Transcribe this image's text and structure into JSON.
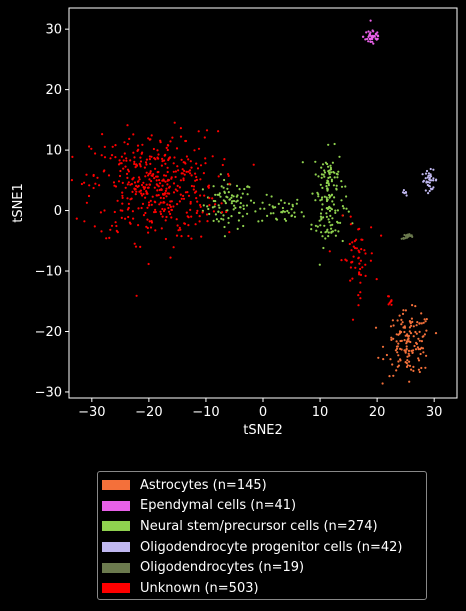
{
  "chart_data": {
    "type": "scatter",
    "title": "",
    "xlabel": "tSNE2",
    "ylabel": "tSNE1",
    "xlim": [
      -34,
      34
    ],
    "ylim": [
      -31,
      33.5
    ],
    "xticks": [
      -30,
      -20,
      -10,
      0,
      10,
      20,
      30
    ],
    "yticks": [
      -30,
      -20,
      -10,
      0,
      10,
      20,
      30
    ],
    "grid": false,
    "legend_position": "below",
    "series": [
      {
        "name": "Astrocytes (n=145)",
        "color": "#f4703a",
        "n": 145,
        "clusters": [
          {
            "cx": 25.5,
            "cy": -22,
            "sx": 2.0,
            "sy": 2.6,
            "n": 145
          }
        ]
      },
      {
        "name": "Ependymal cells (n=41)",
        "color": "#e860e8",
        "n": 41,
        "clusters": [
          {
            "cx": 19.2,
            "cy": 28.8,
            "sx": 0.8,
            "sy": 0.8,
            "n": 41
          }
        ]
      },
      {
        "name": "Neural stem/precursor cells (n=274)",
        "color": "#8fd14f",
        "n": 274,
        "clusters": [
          {
            "cx": -6,
            "cy": 1,
            "sx": 2.2,
            "sy": 2.0,
            "n": 90
          },
          {
            "cx": 3,
            "cy": 0,
            "sx": 2.0,
            "sy": 1.2,
            "n": 40
          },
          {
            "cx": 11.5,
            "cy": 5,
            "sx": 1.3,
            "sy": 2.6,
            "n": 80
          },
          {
            "cx": 11.5,
            "cy": -1.5,
            "sx": 1.5,
            "sy": 2.2,
            "n": 64
          }
        ]
      },
      {
        "name": "Oligodendrocyte progenitor cells (n=42)",
        "color": "#c0b8f0",
        "n": 42,
        "clusters": [
          {
            "cx": 29.2,
            "cy": 5,
            "sx": 0.7,
            "sy": 0.8,
            "n": 36
          },
          {
            "cx": 24.5,
            "cy": 3,
            "sx": 0.3,
            "sy": 0.2,
            "n": 6
          }
        ]
      },
      {
        "name": "Oligodendrocytes (n=19)",
        "color": "#6b7a4e",
        "n": 19,
        "clusters": [
          {
            "cx": 25.5,
            "cy": -4.3,
            "sx": 0.6,
            "sy": 0.2,
            "n": 19
          }
        ]
      },
      {
        "name": "Unknown (n=503)",
        "color": "#ff0000",
        "n": 503,
        "clusters": [
          {
            "cx": -19,
            "cy": 4,
            "sx": 5.5,
            "sy": 4.5,
            "n": 440
          },
          {
            "cx": 16.5,
            "cy": -8,
            "sx": 1.6,
            "sy": 3.2,
            "n": 55
          },
          {
            "cx": 22,
            "cy": -15,
            "sx": 0.3,
            "sy": 0.5,
            "n": 8
          }
        ]
      }
    ]
  },
  "legend": [
    {
      "label": "Astrocytes (n=145)",
      "color": "#f4703a"
    },
    {
      "label": "Ependymal cells (n=41)",
      "color": "#e860e8"
    },
    {
      "label": "Neural stem/precursor cells (n=274)",
      "color": "#8fd14f"
    },
    {
      "label": "Oligodendrocyte progenitor cells (n=42)",
      "color": "#c0b8f0"
    },
    {
      "label": "Oligodendrocytes (n=19)",
      "color": "#6b7a4e"
    },
    {
      "label": "Unknown (n=503)",
      "color": "#ff0000"
    }
  ]
}
